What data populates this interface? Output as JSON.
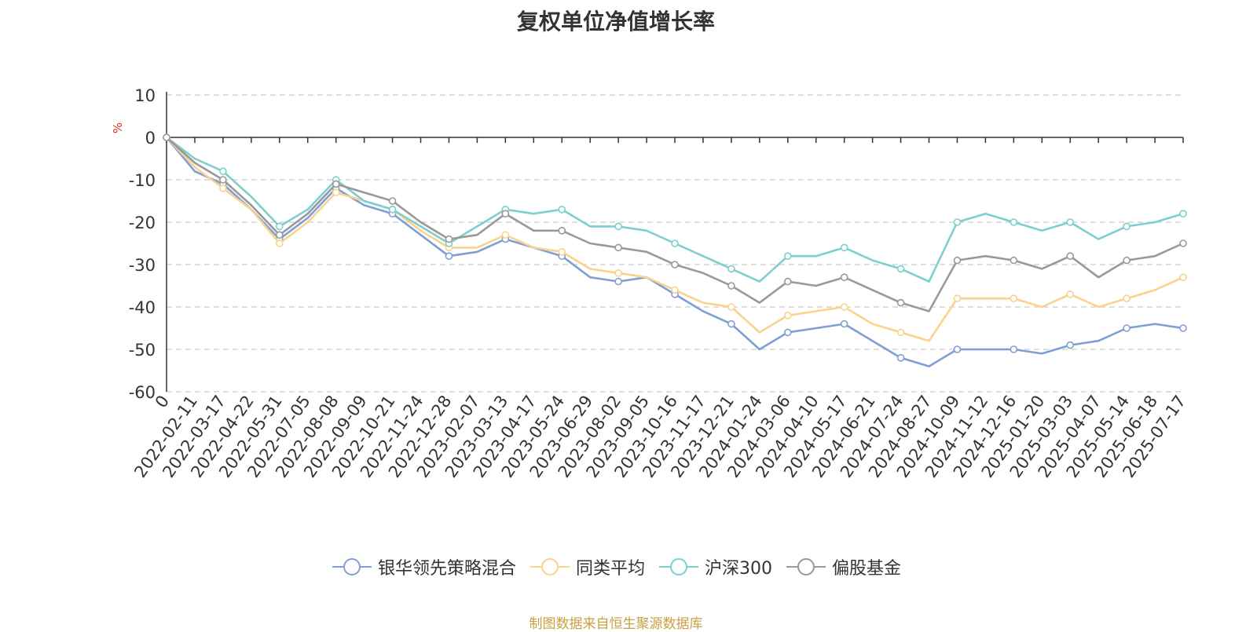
{
  "chart_data": {
    "type": "line",
    "title": "复权单位净值增长率",
    "ylabel": "%",
    "ylim": [
      -60,
      10
    ],
    "yticks": [
      10,
      0,
      -10,
      -20,
      -30,
      -40,
      -50,
      -60
    ],
    "grid": true,
    "legend_position": "bottom",
    "x_labels": [
      "0",
      "2022-02-11",
      "2022-03-17",
      "2022-04-22",
      "2022-05-31",
      "2022-07-05",
      "2022-08-08",
      "2022-09-09",
      "2022-10-21",
      "2022-11-24",
      "2022-12-28",
      "2023-02-07",
      "2023-03-13",
      "2023-04-17",
      "2023-05-24",
      "2023-06-29",
      "2023-08-02",
      "2023-09-05",
      "2023-10-16",
      "2023-11-17",
      "2023-12-21",
      "2024-01-24",
      "2024-03-06",
      "2024-04-10",
      "2024-05-17",
      "2024-06-21",
      "2024-07-24",
      "2024-08-27",
      "2024-10-09",
      "2024-11-12",
      "2024-12-16",
      "2025-01-20",
      "2025-03-03",
      "2025-04-07",
      "2025-05-14",
      "2025-06-18",
      "2025-07-17"
    ],
    "series": [
      {
        "name": "银华领先策略混合",
        "color": "#7f9fd4",
        "values": [
          0,
          -8,
          -11,
          -17,
          -24,
          -19,
          -12,
          -16,
          -18,
          -23,
          -28,
          -27,
          -24,
          -26,
          -28,
          -33,
          -34,
          -33,
          -37,
          -41,
          -44,
          -50,
          -46,
          -45,
          -44,
          -48,
          -52,
          -54,
          -50,
          -50,
          -50,
          -51,
          -49,
          -48,
          -45,
          -44,
          -45
        ]
      },
      {
        "name": "同类平均",
        "color": "#f9d38c",
        "values": [
          0,
          -7,
          -12,
          -17,
          -25,
          -20,
          -13,
          -15,
          -17,
          -22,
          -26,
          -26,
          -23,
          -26,
          -27,
          -31,
          -32,
          -33,
          -36,
          -39,
          -40,
          -46,
          -42,
          -41,
          -40,
          -44,
          -46,
          -48,
          -38,
          -38,
          -38,
          -40,
          -37,
          -40,
          -38,
          -36,
          -33
        ]
      },
      {
        "name": "沪深300",
        "color": "#7dcfce",
        "values": [
          0,
          -5,
          -8,
          -14,
          -21,
          -17,
          -10,
          -15,
          -17,
          -21,
          -25,
          -21,
          -17,
          -18,
          -17,
          -21,
          -21,
          -22,
          -25,
          -28,
          -31,
          -34,
          -28,
          -28,
          -26,
          -29,
          -31,
          -34,
          -20,
          -18,
          -20,
          -22,
          -20,
          -24,
          -21,
          -20,
          -18
        ]
      },
      {
        "name": "偏股基金",
        "color": "#999999",
        "values": [
          0,
          -6,
          -10,
          -16,
          -23,
          -18,
          -11,
          -13,
          -15,
          -20,
          -24,
          -23,
          -18,
          -22,
          -22,
          -25,
          -26,
          -27,
          -30,
          -32,
          -35,
          -39,
          -34,
          -35,
          -33,
          -36,
          -39,
          -41,
          -29,
          -28,
          -29,
          -31,
          -28,
          -33,
          -29,
          -28,
          -25
        ]
      }
    ]
  },
  "legend": {
    "items": [
      "银华领先策略混合",
      "同类平均",
      "沪深300",
      "偏股基金"
    ]
  },
  "source_text": "制图数据来自恒生聚源数据库"
}
